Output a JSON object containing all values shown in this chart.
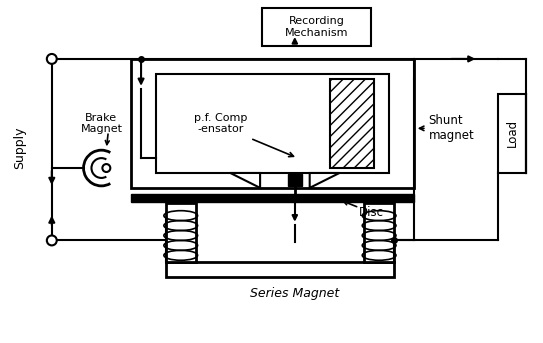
{
  "bg_color": "#ffffff",
  "labels": {
    "recording": "Recording\nMechanism",
    "shunt": "Shunt\nmagnet",
    "pf_comp": "p.f. Comp\n-ensator",
    "brake": "Brake\nMagnet",
    "supply": "Supply",
    "load": "Load",
    "disc": "Disc",
    "series": "Series Magnet"
  },
  "figsize": [
    5.43,
    3.43
  ],
  "dpi": 100
}
